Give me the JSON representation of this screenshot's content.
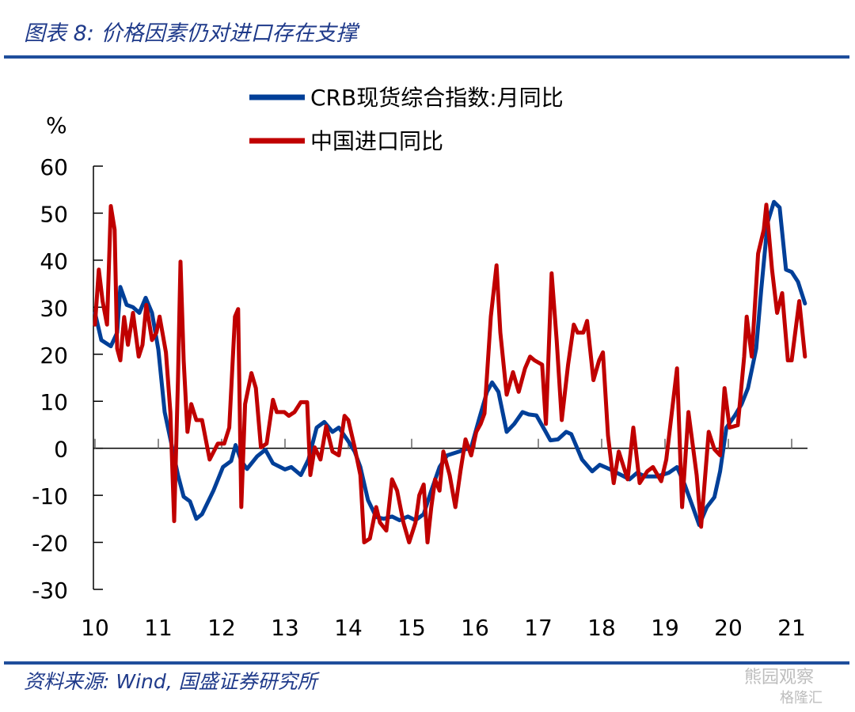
{
  "title": "图表 8: 价格因素仍对进口存在支撑",
  "source": "资料来源: Wind, 国盛证券研究所",
  "watermark": {
    "line1": "熊园观察",
    "line2": "格隆汇"
  },
  "colors": {
    "crb": "#003f98",
    "import": "#c00000",
    "rule": "#1f4e9c"
  },
  "chart_data": {
    "type": "line",
    "ylabel": "%",
    "ylim": [
      -30,
      60
    ],
    "yticks": [
      "60",
      "50",
      "40",
      "30",
      "20",
      "10",
      "0",
      "-10",
      "-20",
      "-30"
    ],
    "xlim": [
      10,
      21.25
    ],
    "xticks": [
      "10",
      "11",
      "12",
      "13",
      "14",
      "15",
      "16",
      "17",
      "18",
      "19",
      "20",
      "21"
    ],
    "grid": false,
    "legend": "top-center",
    "series": [
      {
        "name": "CRB现货综合指数:月同比",
        "points": [
          [
            10.0,
            28.8
          ],
          [
            10.1,
            23
          ],
          [
            10.25,
            21.7
          ],
          [
            10.35,
            24.6
          ],
          [
            10.4,
            34.3
          ],
          [
            10.5,
            30.5
          ],
          [
            10.6,
            30
          ],
          [
            10.7,
            28.8
          ],
          [
            10.8,
            32
          ],
          [
            10.9,
            28.8
          ],
          [
            11.0,
            21
          ],
          [
            11.1,
            7.7
          ],
          [
            11.19,
            2
          ],
          [
            11.31,
            -5.7
          ],
          [
            11.4,
            -10.3
          ],
          [
            11.5,
            -11.3
          ],
          [
            11.6,
            -15
          ],
          [
            11.69,
            -14
          ],
          [
            11.87,
            -9
          ],
          [
            12.02,
            -4
          ],
          [
            12.15,
            -2.7
          ],
          [
            12.22,
            0.7
          ],
          [
            12.31,
            -2.7
          ],
          [
            12.4,
            -4.4
          ],
          [
            12.56,
            -1.7
          ],
          [
            12.69,
            -0.3
          ],
          [
            12.81,
            -3.2
          ],
          [
            13.0,
            -4.5
          ],
          [
            13.1,
            -4
          ],
          [
            13.25,
            -5.7
          ],
          [
            13.37,
            -2.4
          ],
          [
            13.5,
            4.4
          ],
          [
            13.62,
            5.6
          ],
          [
            13.75,
            3.5
          ],
          [
            13.85,
            4.4
          ],
          [
            14.0,
            1.5
          ],
          [
            14.1,
            -0.7
          ],
          [
            14.19,
            -4
          ],
          [
            14.31,
            -11
          ],
          [
            14.44,
            -14.6
          ],
          [
            14.56,
            -15
          ],
          [
            14.69,
            -14.5
          ],
          [
            14.81,
            -15.3
          ],
          [
            14.94,
            -14.5
          ],
          [
            15.06,
            -15.3
          ],
          [
            15.19,
            -14
          ],
          [
            15.31,
            -9
          ],
          [
            15.44,
            -4
          ],
          [
            15.56,
            -1.5
          ],
          [
            15.75,
            -0.7
          ],
          [
            15.94,
            0.2
          ],
          [
            16.06,
            6
          ],
          [
            16.19,
            12
          ],
          [
            16.27,
            14
          ],
          [
            16.37,
            12
          ],
          [
            16.5,
            3.5
          ],
          [
            16.62,
            5.2
          ],
          [
            16.75,
            7.7
          ],
          [
            16.85,
            7.2
          ],
          [
            16.97,
            7
          ],
          [
            17.1,
            3.9
          ],
          [
            17.19,
            1.7
          ],
          [
            17.31,
            1.9
          ],
          [
            17.44,
            3.5
          ],
          [
            17.52,
            3
          ],
          [
            17.69,
            -2.4
          ],
          [
            17.85,
            -4.9
          ],
          [
            17.97,
            -3.5
          ],
          [
            18.12,
            -4.4
          ],
          [
            18.31,
            -5.7
          ],
          [
            18.44,
            -6.6
          ],
          [
            18.56,
            -5.2
          ],
          [
            18.69,
            -6
          ],
          [
            18.87,
            -6
          ],
          [
            19.06,
            -5.2
          ],
          [
            19.19,
            -4
          ],
          [
            19.31,
            -7.7
          ],
          [
            19.44,
            -12.5
          ],
          [
            19.54,
            -16.3
          ],
          [
            19.66,
            -12.5
          ],
          [
            19.78,
            -10.4
          ],
          [
            19.87,
            -4.9
          ],
          [
            19.97,
            4.4
          ],
          [
            20.1,
            6.9
          ],
          [
            20.21,
            9.4
          ],
          [
            20.31,
            12.8
          ],
          [
            20.44,
            21.2
          ],
          [
            20.52,
            33.8
          ],
          [
            20.62,
            48
          ],
          [
            20.72,
            52.4
          ],
          [
            20.81,
            51.2
          ],
          [
            20.91,
            38
          ],
          [
            21.0,
            37.5
          ],
          [
            21.1,
            35.4
          ],
          [
            21.21,
            30.8
          ]
        ]
      },
      {
        "name": "中国进口同比",
        "points": [
          [
            10.0,
            26.3
          ],
          [
            10.06,
            38
          ],
          [
            10.12,
            31.3
          ],
          [
            10.19,
            26.3
          ],
          [
            10.25,
            51.5
          ],
          [
            10.31,
            46.5
          ],
          [
            10.35,
            21.2
          ],
          [
            10.4,
            18.7
          ],
          [
            10.46,
            27.9
          ],
          [
            10.52,
            22
          ],
          [
            10.6,
            28.8
          ],
          [
            10.69,
            19.5
          ],
          [
            10.75,
            22
          ],
          [
            10.81,
            30.5
          ],
          [
            10.9,
            23
          ],
          [
            10.97,
            24.6
          ],
          [
            11.02,
            28
          ],
          [
            11.12,
            20.4
          ],
          [
            11.19,
            7.7
          ],
          [
            11.25,
            -15.5
          ],
          [
            11.31,
            14.5
          ],
          [
            11.35,
            39.7
          ],
          [
            11.4,
            18.7
          ],
          [
            11.46,
            3.5
          ],
          [
            11.52,
            9.4
          ],
          [
            11.6,
            6
          ],
          [
            11.69,
            6
          ],
          [
            11.81,
            -2.4
          ],
          [
            11.94,
            1
          ],
          [
            12.04,
            1
          ],
          [
            12.12,
            4.4
          ],
          [
            12.21,
            28
          ],
          [
            12.26,
            29.6
          ],
          [
            12.31,
            -12.5
          ],
          [
            12.37,
            9.4
          ],
          [
            12.47,
            16
          ],
          [
            12.54,
            12.8
          ],
          [
            12.62,
            0.2
          ],
          [
            12.71,
            1
          ],
          [
            12.81,
            10.3
          ],
          [
            12.87,
            7.7
          ],
          [
            12.99,
            7.7
          ],
          [
            13.06,
            6.9
          ],
          [
            13.15,
            7.7
          ],
          [
            13.25,
            9.8
          ],
          [
            13.35,
            9.8
          ],
          [
            13.4,
            -5.7
          ],
          [
            13.47,
            0.2
          ],
          [
            13.56,
            -2.4
          ],
          [
            13.65,
            4.7
          ],
          [
            13.75,
            -0.7
          ],
          [
            13.85,
            -1.5
          ],
          [
            13.94,
            6.9
          ],
          [
            14.0,
            6
          ],
          [
            14.1,
            0.2
          ],
          [
            14.19,
            -5.7
          ],
          [
            14.25,
            -20
          ],
          [
            14.34,
            -19.2
          ],
          [
            14.44,
            -12.5
          ],
          [
            14.5,
            -15.8
          ],
          [
            14.6,
            -17.5
          ],
          [
            14.69,
            -6.6
          ],
          [
            14.77,
            -9
          ],
          [
            14.87,
            -15.8
          ],
          [
            14.96,
            -20
          ],
          [
            15.06,
            -15.8
          ],
          [
            15.12,
            -10
          ],
          [
            15.19,
            -7.7
          ],
          [
            15.25,
            -20
          ],
          [
            15.31,
            -12.5
          ],
          [
            15.37,
            -6.6
          ],
          [
            15.44,
            -9
          ],
          [
            15.5,
            -0.7
          ],
          [
            15.6,
            -5.7
          ],
          [
            15.69,
            -12.5
          ],
          [
            15.77,
            -4.9
          ],
          [
            15.85,
            1.9
          ],
          [
            15.94,
            -1.5
          ],
          [
            16.02,
            3.5
          ],
          [
            16.09,
            5.2
          ],
          [
            16.15,
            7.4
          ],
          [
            16.25,
            28
          ],
          [
            16.34,
            38.9
          ],
          [
            16.4,
            24.6
          ],
          [
            16.5,
            11.4
          ],
          [
            16.6,
            16.2
          ],
          [
            16.69,
            12
          ],
          [
            16.79,
            17
          ],
          [
            16.87,
            19.5
          ],
          [
            16.94,
            18.7
          ],
          [
            17.06,
            17.8
          ],
          [
            17.12,
            5.2
          ],
          [
            17.21,
            37.2
          ],
          [
            17.29,
            22.9
          ],
          [
            17.37,
            6
          ],
          [
            17.47,
            17.8
          ],
          [
            17.56,
            26.3
          ],
          [
            17.62,
            24.6
          ],
          [
            17.71,
            24.6
          ],
          [
            17.77,
            27.1
          ],
          [
            17.87,
            14.5
          ],
          [
            17.96,
            18.7
          ],
          [
            18.02,
            20.4
          ],
          [
            18.1,
            2.7
          ],
          [
            18.19,
            -7.4
          ],
          [
            18.27,
            -0.7
          ],
          [
            18.41,
            -6.6
          ],
          [
            18.5,
            4.4
          ],
          [
            18.6,
            -7.4
          ],
          [
            18.72,
            -4.9
          ],
          [
            18.81,
            -4
          ],
          [
            18.94,
            -7
          ],
          [
            19.02,
            -2.4
          ],
          [
            19.19,
            17
          ],
          [
            19.27,
            -12.5
          ],
          [
            19.37,
            7.7
          ],
          [
            19.5,
            -5.7
          ],
          [
            19.57,
            -16.7
          ],
          [
            19.69,
            3.5
          ],
          [
            19.78,
            -0.2
          ],
          [
            19.87,
            -1.5
          ],
          [
            19.94,
            12.8
          ],
          [
            20.02,
            4.4
          ],
          [
            20.15,
            4.9
          ],
          [
            20.25,
            19.5
          ],
          [
            20.29,
            28
          ],
          [
            20.37,
            19.5
          ],
          [
            20.47,
            41.4
          ],
          [
            20.56,
            46.5
          ],
          [
            20.6,
            51.8
          ],
          [
            20.69,
            38
          ],
          [
            20.77,
            28.8
          ],
          [
            20.85,
            33
          ],
          [
            20.94,
            18.7
          ],
          [
            21.0,
            18.7
          ],
          [
            21.12,
            31.3
          ],
          [
            21.21,
            19.5
          ]
        ]
      }
    ]
  }
}
